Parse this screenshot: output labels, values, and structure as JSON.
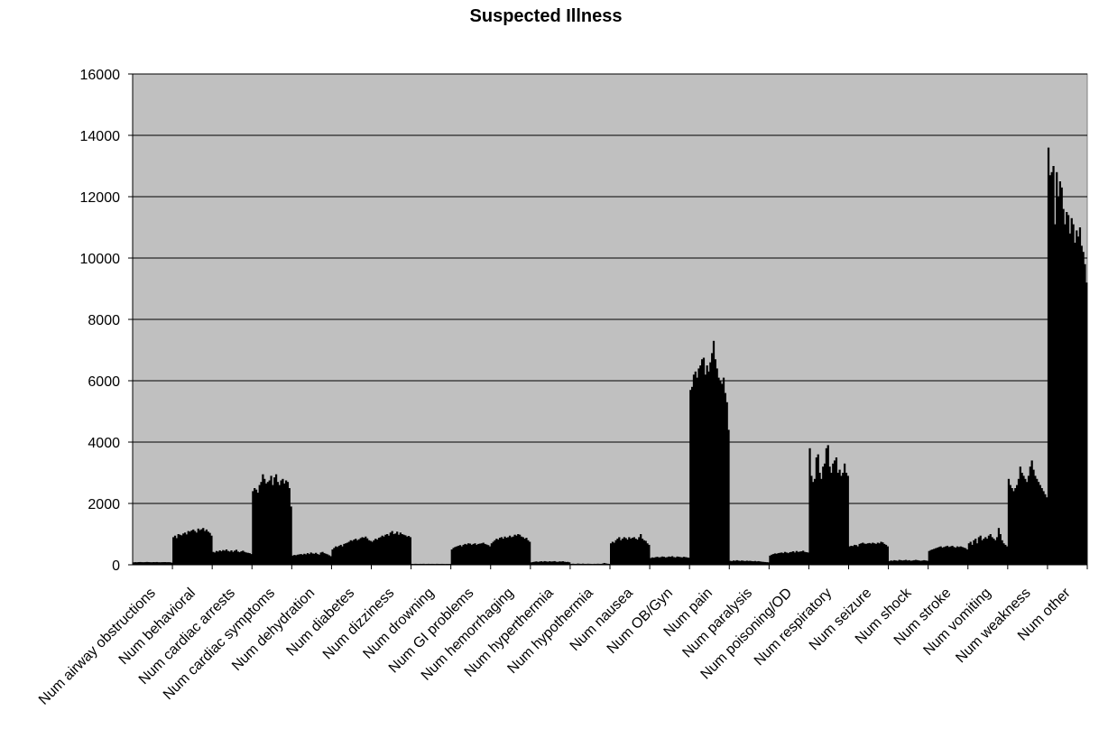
{
  "chart_data": {
    "type": "bar",
    "title": "Suspected Illness",
    "xlabel": "",
    "ylabel": "",
    "ylim": [
      0,
      16000
    ],
    "yticks": [
      0,
      2000,
      4000,
      6000,
      8000,
      10000,
      12000,
      14000,
      16000
    ],
    "grid": true,
    "legend": "none",
    "plot_background": "#C0C0C0",
    "bar_color": "#000000",
    "categories": [
      "Num airway obstructions",
      "Num behavioral",
      "Num cardiac arrests",
      "Num cardiac symptoms",
      "Num dehydration",
      "Num diabetes",
      "Num dizziness",
      "Num drowning",
      "Num GI problems",
      "Num hemorrhaging",
      "Num hyperthermia",
      "Num hypothermia",
      "Num nausea",
      "Num OB/Gyn",
      "Num pain",
      "Num paralysis",
      "Num poisoning/OD",
      "Num respiratory",
      "Num seizure",
      "Num shock",
      "Num stroke",
      "Num vomiting",
      "Num weakness",
      "Num other"
    ],
    "series_per_category": [
      [
        80,
        85,
        82,
        88,
        90,
        86,
        84,
        87,
        92,
        89,
        85,
        83,
        88,
        86,
        90,
        84,
        82,
        85,
        87,
        88,
        84,
        86,
        83,
        70
      ],
      [
        900,
        950,
        870,
        1000,
        980,
        960,
        1020,
        1050,
        990,
        1100,
        1080,
        1120,
        1150,
        1100,
        1050,
        1180,
        1130,
        1160,
        1200,
        1100,
        1150,
        1080,
        1040,
        950
      ],
      [
        420,
        400,
        450,
        430,
        470,
        440,
        480,
        460,
        500,
        450,
        430,
        470,
        420,
        460,
        490,
        430,
        410,
        440,
        460,
        420,
        400,
        390,
        380,
        350
      ],
      [
        2400,
        2500,
        2450,
        2350,
        2600,
        2700,
        2950,
        2800,
        2650,
        2700,
        2750,
        2900,
        2600,
        2850,
        2950,
        2700,
        2600,
        2750,
        2800,
        2650,
        2750,
        2700,
        2500,
        1900
      ],
      [
        300,
        320,
        310,
        330,
        340,
        350,
        330,
        360,
        340,
        380,
        350,
        400,
        370,
        360,
        390,
        350,
        330,
        400,
        420,
        380,
        360,
        340,
        310,
        280
      ],
      [
        500,
        550,
        600,
        580,
        620,
        650,
        600,
        680,
        700,
        720,
        750,
        800,
        780,
        820,
        850,
        800,
        830,
        870,
        900,
        880,
        920,
        860,
        800,
        780
      ],
      [
        750,
        800,
        850,
        820,
        880,
        900,
        950,
        920,
        980,
        1000,
        950,
        1050,
        1100,
        1000,
        1020,
        1080,
        980,
        1050,
        1000,
        980,
        960,
        920,
        940,
        900
      ],
      [
        30,
        28,
        32,
        30,
        29,
        31,
        30,
        33,
        28,
        30,
        32,
        29,
        31,
        30,
        28,
        32,
        30,
        29,
        31,
        30,
        28,
        30,
        29,
        30
      ],
      [
        500,
        550,
        580,
        600,
        620,
        640,
        600,
        650,
        680,
        660,
        700,
        690,
        650,
        680,
        700,
        650,
        680,
        690,
        700,
        720,
        680,
        660,
        640,
        600
      ],
      [
        700,
        750,
        800,
        850,
        820,
        880,
        900,
        850,
        920,
        880,
        900,
        950,
        900,
        920,
        980,
        950,
        1000,
        980,
        920,
        900,
        850,
        880,
        800,
        750
      ],
      [
        80,
        90,
        100,
        110,
        95,
        105,
        115,
        100,
        120,
        110,
        100,
        115,
        105,
        110,
        120,
        100,
        95,
        110,
        105,
        115,
        100,
        90,
        95,
        80
      ],
      [
        30,
        35,
        32,
        30,
        40,
        35,
        30,
        38,
        32,
        30,
        35,
        33,
        30,
        28,
        32,
        30,
        35,
        32,
        30,
        40,
        60,
        45,
        35,
        30
      ],
      [
        700,
        750,
        720,
        800,
        850,
        900,
        800,
        850,
        900,
        870,
        820,
        900,
        850,
        880,
        900,
        850,
        820,
        900,
        1000,
        850,
        800,
        780,
        700,
        650
      ],
      [
        220,
        240,
        230,
        250,
        260,
        240,
        250,
        270,
        260,
        240,
        250,
        270,
        260,
        280,
        250,
        240,
        270,
        260,
        250,
        240,
        260,
        250,
        240,
        230
      ],
      [
        5700,
        5800,
        6200,
        6300,
        6100,
        6400,
        6500,
        6700,
        6750,
        6200,
        6500,
        6300,
        6600,
        6900,
        7300,
        6700,
        6400,
        6100,
        6000,
        5900,
        6100,
        5600,
        5300,
        4400
      ],
      [
        130,
        120,
        140,
        130,
        150,
        135,
        125,
        140,
        130,
        120,
        135,
        125,
        130,
        120,
        115,
        125,
        110,
        120,
        110,
        100,
        95,
        90,
        85,
        80
      ],
      [
        300,
        330,
        350,
        370,
        360,
        380,
        390,
        400,
        380,
        420,
        400,
        380,
        410,
        420,
        440,
        400,
        450,
        420,
        430,
        440,
        460,
        420,
        410,
        400
      ],
      [
        3800,
        2900,
        2700,
        2800,
        3500,
        3600,
        3000,
        2800,
        3200,
        3300,
        3800,
        3900,
        3200,
        3000,
        3300,
        3400,
        3500,
        3000,
        3100,
        2900,
        3000,
        3300,
        3000,
        2900
      ],
      [
        600,
        620,
        610,
        650,
        640,
        600,
        680,
        700,
        720,
        690,
        680,
        700,
        710,
        690,
        720,
        700,
        680,
        720,
        700,
        750,
        730,
        680,
        650,
        600
      ],
      [
        120,
        140,
        130,
        150,
        140,
        130,
        160,
        150,
        140,
        150,
        160,
        140,
        150,
        130,
        140,
        150,
        160,
        150,
        140,
        130,
        140,
        150,
        140,
        130
      ],
      [
        450,
        480,
        500,
        520,
        540,
        560,
        580,
        600,
        560,
        580,
        600,
        620,
        580,
        600,
        620,
        580,
        560,
        600,
        580,
        600,
        580,
        560,
        540,
        500
      ],
      [
        700,
        750,
        650,
        800,
        850,
        700,
        900,
        950,
        800,
        850,
        900,
        850,
        950,
        1000,
        900,
        850,
        800,
        900,
        1200,
        1000,
        800,
        700,
        650,
        600
      ],
      [
        2800,
        2600,
        2500,
        2400,
        2500,
        2600,
        2800,
        3200,
        3000,
        2900,
        2800,
        2700,
        2900,
        3200,
        3400,
        3100,
        2900,
        2800,
        2700,
        2600,
        2500,
        2400,
        2300,
        2200
      ],
      [
        13600,
        12700,
        12800,
        13000,
        11100,
        12800,
        12000,
        12500,
        12300,
        11600,
        11100,
        11500,
        11400,
        10800,
        11300,
        11100,
        10500,
        10900,
        10700,
        11000,
        10400,
        10200,
        9800,
        9200
      ]
    ]
  }
}
